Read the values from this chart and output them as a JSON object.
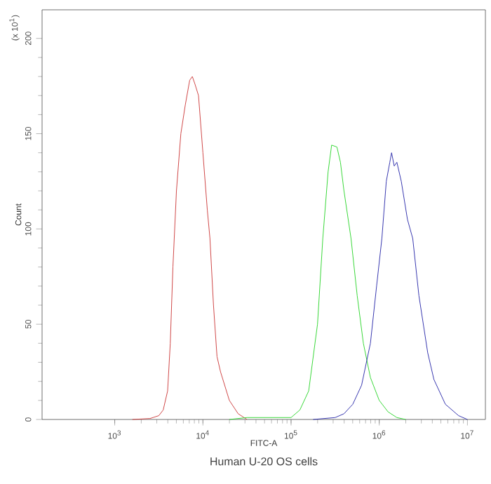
{
  "chart_data": {
    "type": "line",
    "xlabel": "FITC-A",
    "ylabel": "Count",
    "annotations": [
      "(x 10$^{1}$)",
      "Human U-20 OS cells"
    ],
    "log": "x",
    "xlim": [
      150,
      16000000
    ],
    "ylim": [
      0,
      215
    ],
    "xticks": [
      {
        "value": 1000,
        "label": "10$^{3}$"
      },
      {
        "value": 10000,
        "label": "10$^{4}$"
      },
      {
        "value": 100000,
        "label": "10$^{5}$"
      },
      {
        "value": 1000000,
        "label": "10$^{6}$"
      },
      {
        "value": 10000000,
        "label": "10$^{7}$"
      }
    ],
    "yticks": [
      0,
      50,
      100,
      150,
      200
    ],
    "grid": false,
    "marker": "none",
    "line_style": "solid",
    "series": [
      {
        "color": "#d04848",
        "x": [
          1585,
          2512,
          3162,
          3548,
          3981,
          4266,
          4571,
          5012,
          5623,
          6310,
          7079,
          7586,
          8128,
          8913,
          10000,
          11220,
          12023,
          13183,
          14454,
          15849,
          19953,
          25119,
          31623
        ],
        "values": [
          0,
          0.5,
          2,
          5,
          15,
          40,
          80,
          120,
          150,
          165,
          178,
          180,
          176,
          170,
          140,
          110,
          95,
          60,
          33,
          25,
          10,
          3,
          0
        ]
      },
      {
        "color": "#3ad83a",
        "x": [
          19953,
          31623,
          63096,
          100000,
          125893,
          158489,
          199526,
          229087,
          263027,
          288403,
          331131,
          363078,
          398107,
          478630,
          562341,
          660693,
          794328,
          1000000,
          1258925,
          1584893,
          1995262
        ],
        "values": [
          0,
          1,
          1,
          1,
          5,
          15,
          50,
          95,
          130,
          144,
          143,
          135,
          120,
          95,
          65,
          40,
          22,
          10,
          4,
          1,
          0
        ]
      },
      {
        "color": "#3838b0",
        "x": [
          177828,
          316228,
          398107,
          501187,
          630957,
          794328,
          933254,
          1071519,
          1202264,
          1318257,
          1380384,
          1479108,
          1584893,
          1778279,
          2089296,
          2398833,
          2818383,
          3548134,
          4168694,
          5623413,
          7943282,
          10000000
        ],
        "values": [
          0,
          1,
          3,
          8,
          18,
          40,
          70,
          95,
          125,
          135,
          140,
          133,
          135,
          125,
          105,
          95,
          65,
          35,
          21,
          8,
          2,
          0
        ]
      }
    ]
  }
}
